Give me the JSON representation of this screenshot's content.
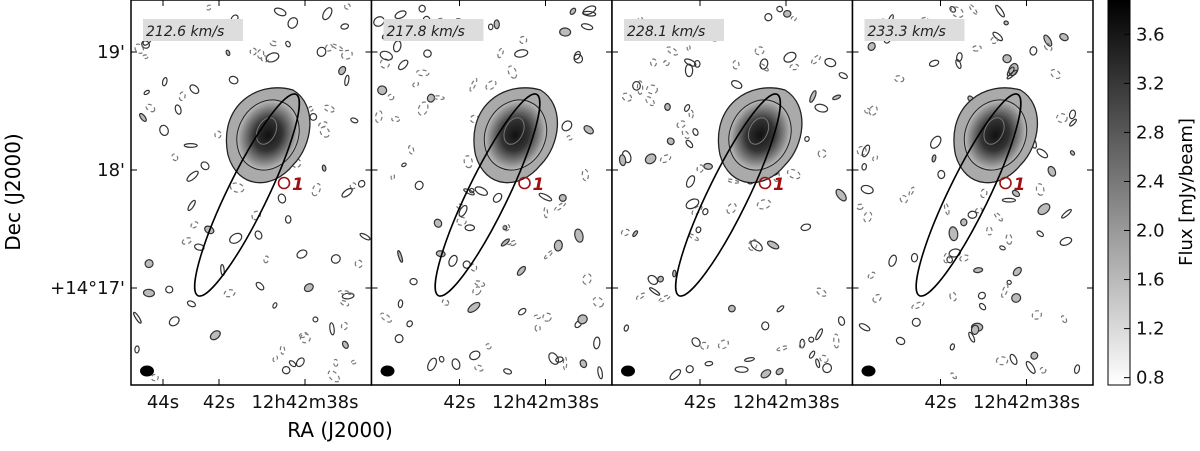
{
  "figure": {
    "xlabel": "RA (J2000)",
    "ylabel": "Dec (J2000)",
    "yticks": [
      "19'",
      "18'",
      "+14°17'"
    ],
    "panels": [
      {
        "label": "212.6 km/s",
        "xticks": [
          "44s",
          "42s",
          "12h42m38s"
        ]
      },
      {
        "label": "217.8 km/s",
        "xticks": [
          "42s",
          "12h42m38s"
        ]
      },
      {
        "label": "228.1 km/s",
        "xticks": [
          "42s",
          "12h42m38s"
        ]
      },
      {
        "label": "233.3 km/s",
        "xticks": [
          "42s",
          "12h42m38s"
        ]
      }
    ],
    "source_label": "1",
    "colorbar": {
      "label": "Flux [mJy/beam]",
      "clim": [
        0.74,
        3.88
      ],
      "ticks": [
        0.8,
        1.2,
        1.6,
        {
          "value": 2,
          "label": "2.0"
        },
        2.4,
        2.8,
        3.2,
        3.6
      ]
    }
  }
}
